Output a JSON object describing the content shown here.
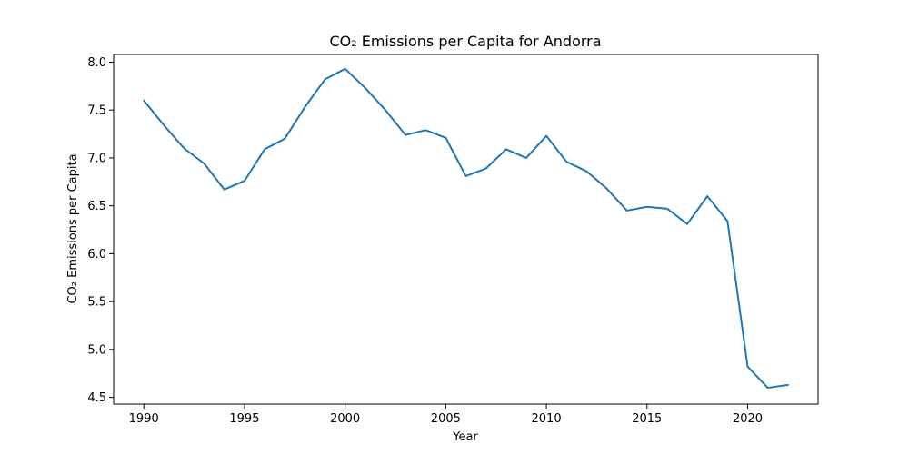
{
  "chart_data": {
    "type": "line",
    "title": "CO₂ Emissions per Capita for Andorra",
    "xlabel": "Year",
    "ylabel": "CO₂ Emissions per Capita",
    "xlim": [
      1988.5,
      2023.5
    ],
    "ylim": [
      4.43,
      8.08
    ],
    "grid": false,
    "x_ticks": [
      1990,
      1995,
      2000,
      2005,
      2010,
      2015,
      2020
    ],
    "y_ticks": [
      4.5,
      5.0,
      5.5,
      6.0,
      6.5,
      7.0,
      7.5,
      8.0
    ],
    "y_tick_labels": [
      "4.5",
      "5.0",
      "5.5",
      "6.0",
      "6.5",
      "7.0",
      "7.5",
      "8.0"
    ],
    "series": [
      {
        "color": "#1f77b4",
        "x": [
          1990,
          1991,
          1992,
          1993,
          1994,
          1995,
          1996,
          1997,
          1998,
          1999,
          2000,
          2001,
          2002,
          2003,
          2004,
          2005,
          2006,
          2007,
          2008,
          2009,
          2010,
          2011,
          2012,
          2013,
          2014,
          2015,
          2016,
          2017,
          2018,
          2019,
          2020,
          2021,
          2022
        ],
        "values": [
          7.6,
          7.34,
          7.1,
          6.94,
          6.67,
          6.76,
          7.09,
          7.2,
          7.53,
          7.82,
          7.93,
          7.73,
          7.5,
          7.24,
          7.29,
          7.21,
          6.81,
          6.89,
          7.09,
          7.0,
          7.23,
          6.96,
          6.86,
          6.68,
          6.45,
          6.49,
          6.47,
          6.31,
          6.6,
          6.34,
          4.82,
          4.6,
          4.63
        ]
      }
    ]
  }
}
